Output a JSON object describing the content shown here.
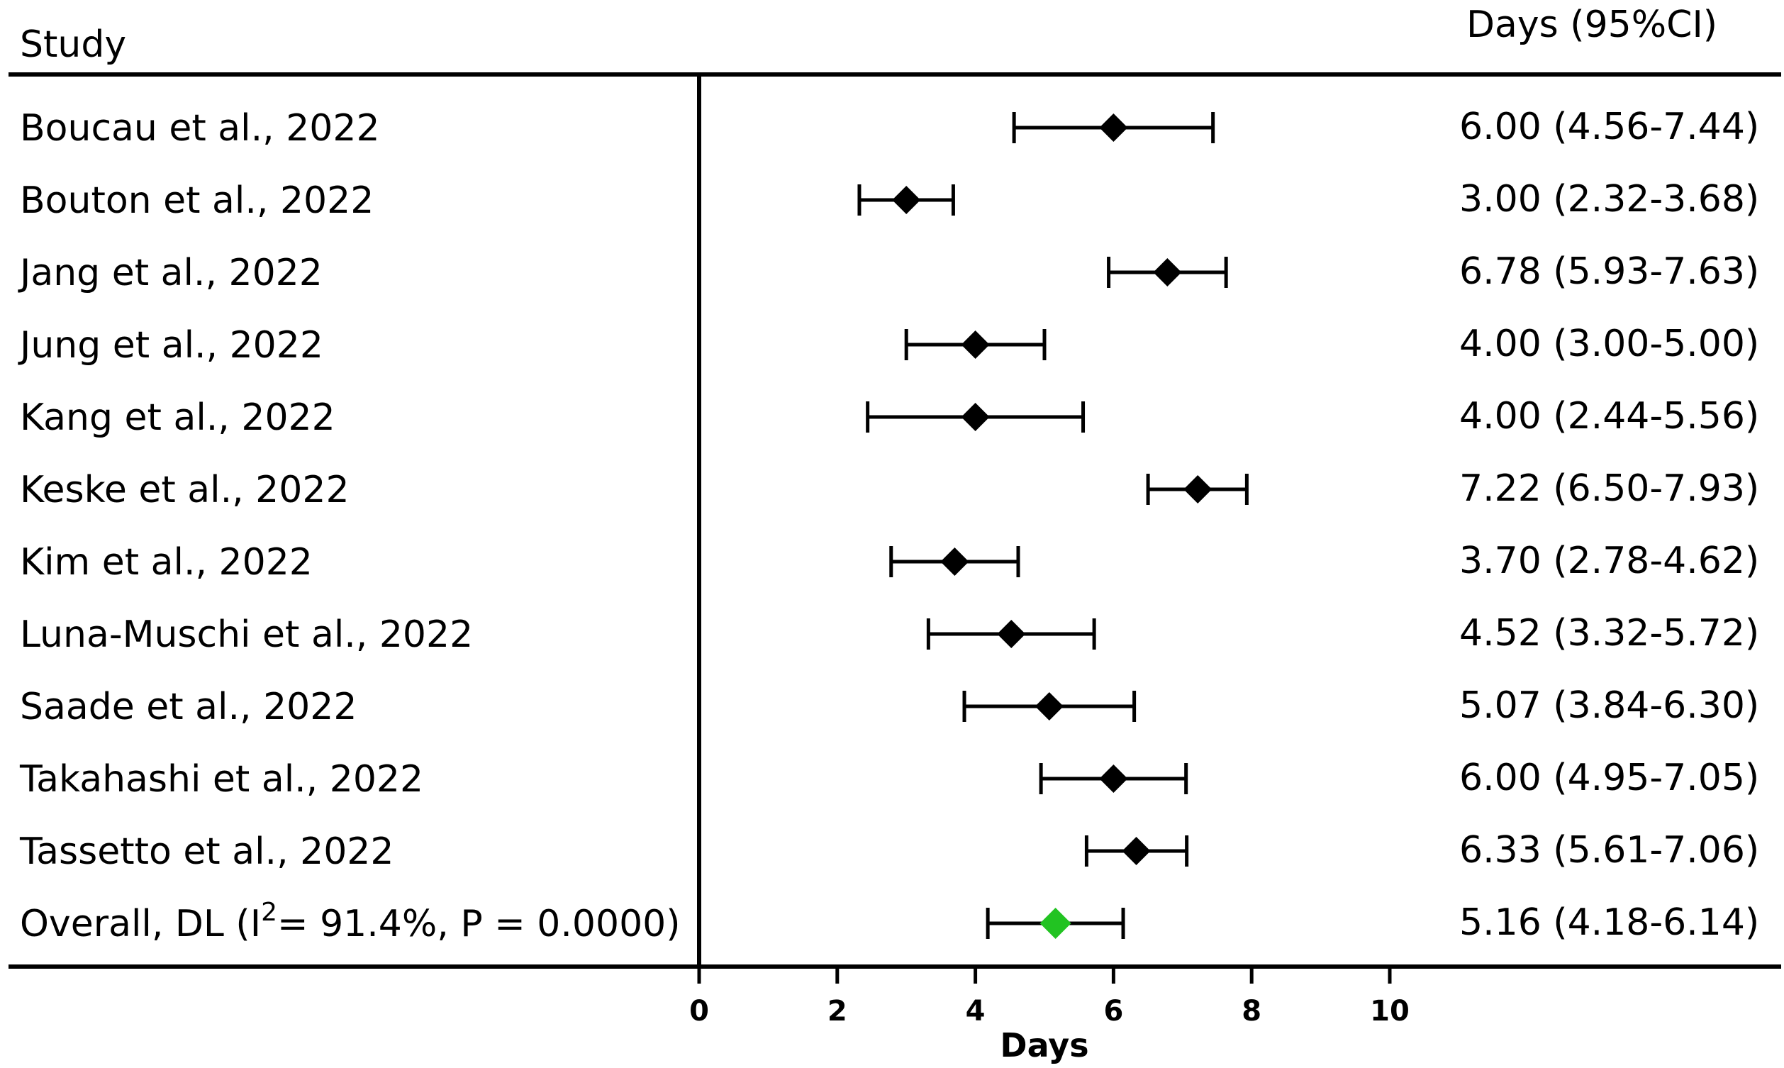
{
  "chart_data": {
    "type": "forest",
    "header": {
      "study": "Study",
      "estimate": "Days (95%CI)"
    },
    "xlabel": "Days",
    "xlim": [
      0,
      10
    ],
    "xticks": [
      "0",
      "2",
      "4",
      "6",
      "8",
      "10"
    ],
    "studies": [
      {
        "name": "Boucau et al., 2022",
        "estimate": 6.0,
        "lower": 4.56,
        "upper": 7.44,
        "ci_text": "6.00 (4.56-7.44)"
      },
      {
        "name": "Bouton et al., 2022",
        "estimate": 3.0,
        "lower": 2.32,
        "upper": 3.68,
        "ci_text": "3.00 (2.32-3.68)"
      },
      {
        "name": "Jang et al., 2022",
        "estimate": 6.78,
        "lower": 5.93,
        "upper": 7.63,
        "ci_text": "6.78 (5.93-7.63)"
      },
      {
        "name": "Jung et al., 2022",
        "estimate": 4.0,
        "lower": 3.0,
        "upper": 5.0,
        "ci_text": "4.00 (3.00-5.00)"
      },
      {
        "name": "Kang et al., 2022",
        "estimate": 4.0,
        "lower": 2.44,
        "upper": 5.56,
        "ci_text": "4.00 (2.44-5.56)"
      },
      {
        "name": "Keske et al., 2022",
        "estimate": 7.22,
        "lower": 6.5,
        "upper": 7.93,
        "ci_text": "7.22 (6.50-7.93)"
      },
      {
        "name": "Kim et al., 2022",
        "estimate": 3.7,
        "lower": 2.78,
        "upper": 4.62,
        "ci_text": "3.70 (2.78-4.62)"
      },
      {
        "name": "Luna-Muschi et al., 2022",
        "estimate": 4.52,
        "lower": 3.32,
        "upper": 5.72,
        "ci_text": "4.52 (3.32-5.72)"
      },
      {
        "name": "Saade et al., 2022",
        "estimate": 5.07,
        "lower": 3.84,
        "upper": 6.3,
        "ci_text": "5.07 (3.84-6.30)"
      },
      {
        "name": "Takahashi et al., 2022",
        "estimate": 6.0,
        "lower": 4.95,
        "upper": 7.05,
        "ci_text": "6.00 (4.95-7.05)"
      },
      {
        "name": "Tassetto et al., 2022",
        "estimate": 6.33,
        "lower": 5.61,
        "upper": 7.06,
        "ci_text": "6.33 (5.61-7.06)"
      }
    ],
    "overall": {
      "name_prefix": "Overall, DL (I",
      "superscript": "2",
      "name_suffix": "= 91.4%, P = 0.0000)",
      "estimate": 5.16,
      "lower": 4.18,
      "upper": 6.14,
      "ci_text": "5.16 (4.18-6.14)"
    },
    "colors": {
      "study_marker": "#000000",
      "overall_marker": "#22c322",
      "line": "#000000"
    }
  }
}
